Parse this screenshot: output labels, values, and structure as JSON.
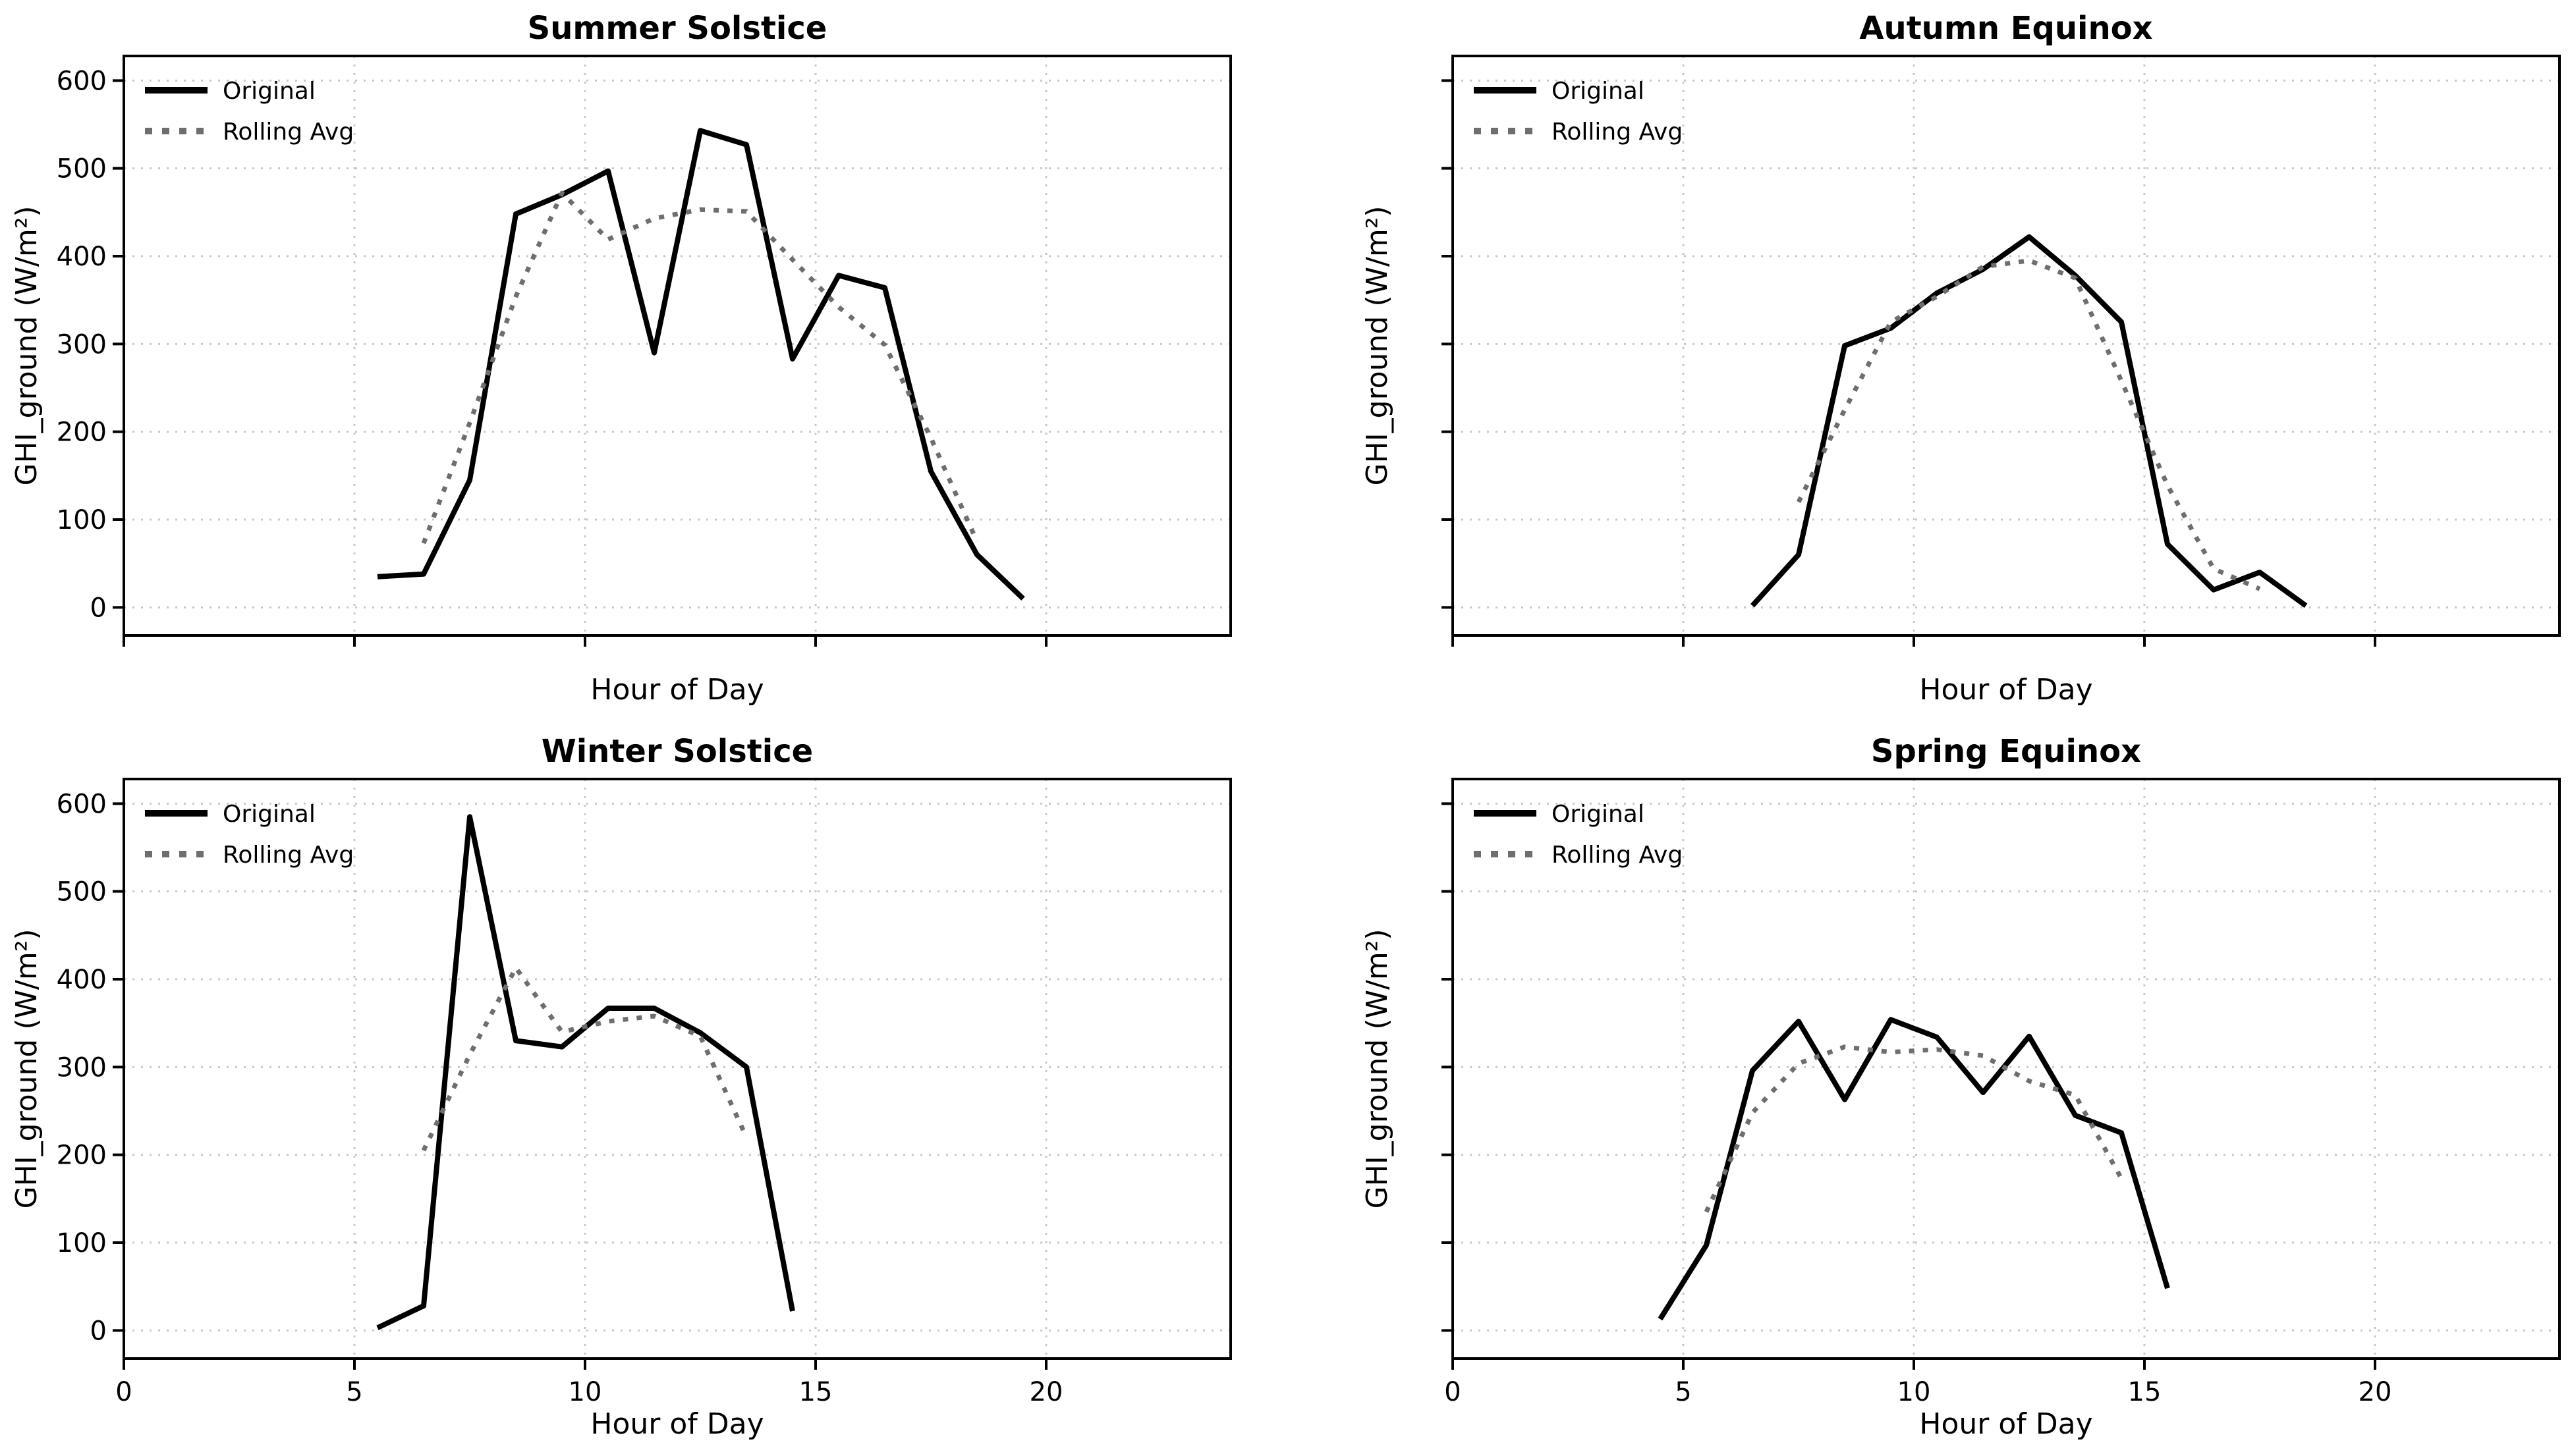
{
  "figure": {
    "background_color": "#ffffff",
    "axis_color": "#000000",
    "grid_color": "#c8c8c8",
    "original_color": "#000000",
    "rolling_color": "#6e6e6e"
  },
  "axes": {
    "xlabel": "Hour of Day",
    "ylabel": "GHI_ground (W/m²)",
    "x_ticks": [
      0,
      5,
      10,
      15,
      20
    ],
    "y_ticks": [
      0,
      100,
      200,
      300,
      400,
      500,
      600
    ],
    "xlim": [
      0,
      24
    ],
    "ylim": [
      -32,
      628
    ],
    "grid": true,
    "legend_position": "upper left"
  },
  "legend": {
    "original_label": "Original",
    "rolling_label": "Rolling Avg"
  },
  "chart_data": [
    {
      "type": "line",
      "title": "Summer Solstice",
      "xlabel": "Hour of Day",
      "ylabel": "GHI_ground (W/m²)",
      "xlim": [
        0,
        24
      ],
      "ylim": [
        -32,
        628
      ],
      "x_ticks": [
        0,
        5,
        10,
        15,
        20
      ],
      "y_ticks": [
        0,
        100,
        200,
        300,
        400,
        500,
        600
      ],
      "series": [
        {
          "name": "Original",
          "style": "solid",
          "color": "#000000",
          "x": [
            5.5,
            6.5,
            7.5,
            8.5,
            9.5,
            10.5,
            11.5,
            12.5,
            13.5,
            14.5,
            15.5,
            16.5,
            17.5,
            18.5,
            19.5
          ],
          "y": [
            35,
            38,
            145,
            448,
            470,
            497,
            290,
            543,
            527,
            283,
            378,
            364,
            155,
            60,
            10
          ]
        },
        {
          "name": "Rolling Avg",
          "style": "dotted",
          "color": "#6e6e6e",
          "x": [
            6.5,
            7.5,
            8.5,
            9.5,
            10.5,
            11.5,
            12.5,
            13.5,
            14.5,
            15.5,
            16.5,
            17.5,
            18.5
          ],
          "y": [
            73,
            210,
            354,
            472,
            419,
            443,
            453,
            451,
            396,
            342,
            299,
            193,
            75
          ]
        }
      ]
    },
    {
      "type": "line",
      "title": "Autumn Equinox",
      "xlabel": "Hour of Day",
      "ylabel": "GHI_ground (W/m²)",
      "xlim": [
        0,
        24
      ],
      "ylim": [
        -32,
        628
      ],
      "x_ticks": [
        0,
        5,
        10,
        15,
        20
      ],
      "y_ticks": [
        0,
        100,
        200,
        300,
        400,
        500,
        600
      ],
      "series": [
        {
          "name": "Original",
          "style": "solid",
          "color": "#000000",
          "x": [
            6.5,
            7.5,
            8.5,
            9.5,
            10.5,
            11.5,
            12.5,
            13.5,
            14.5,
            15.5,
            16.5,
            17.5,
            18.5
          ],
          "y": [
            2,
            60,
            298,
            318,
            358,
            385,
            422,
            378,
            325,
            72,
            20,
            40,
            2
          ]
        },
        {
          "name": "Rolling Avg",
          "style": "dotted",
          "color": "#6e6e6e",
          "x": [
            7.5,
            8.5,
            9.5,
            10.5,
            11.5,
            12.5,
            13.5,
            14.5,
            15.5,
            16.5,
            17.5
          ],
          "y": [
            120,
            225,
            325,
            354,
            388,
            395,
            375,
            258,
            139,
            44,
            21
          ]
        }
      ]
    },
    {
      "type": "line",
      "title": "Winter Solstice",
      "xlabel": "Hour of Day",
      "ylabel": "GHI_ground (W/m²)",
      "xlim": [
        0,
        24
      ],
      "ylim": [
        -32,
        628
      ],
      "x_ticks": [
        0,
        5,
        10,
        15,
        20
      ],
      "y_ticks": [
        0,
        100,
        200,
        300,
        400,
        500,
        600
      ],
      "series": [
        {
          "name": "Original",
          "style": "solid",
          "color": "#000000",
          "x": [
            5.5,
            6.5,
            7.5,
            8.5,
            9.5,
            10.5,
            11.5,
            12.5,
            13.5,
            14.5
          ],
          "y": [
            3,
            28,
            585,
            330,
            323,
            367,
            367,
            339,
            300,
            22
          ]
        },
        {
          "name": "Rolling Avg",
          "style": "dotted",
          "color": "#6e6e6e",
          "x": [
            6.5,
            7.5,
            8.5,
            9.5,
            10.5,
            11.5,
            12.5,
            13.5
          ],
          "y": [
            205,
            314,
            413,
            340,
            352,
            358,
            335,
            220
          ]
        }
      ]
    },
    {
      "type": "line",
      "title": "Spring Equinox",
      "xlabel": "Hour of Day",
      "ylabel": "GHI_ground (W/m²)",
      "xlim": [
        0,
        24
      ],
      "ylim": [
        -32,
        628
      ],
      "x_ticks": [
        0,
        5,
        10,
        15,
        20
      ],
      "y_ticks": [
        0,
        100,
        200,
        300,
        400,
        500,
        600
      ],
      "series": [
        {
          "name": "Original",
          "style": "solid",
          "color": "#000000",
          "x": [
            4.5,
            5.5,
            6.5,
            7.5,
            8.5,
            9.5,
            10.5,
            11.5,
            12.5,
            13.5,
            14.5,
            15.5
          ],
          "y": [
            13,
            97,
            296,
            352,
            263,
            354,
            334,
            271,
            335,
            245,
            225,
            48
          ]
        },
        {
          "name": "Rolling Avg",
          "style": "dotted",
          "color": "#6e6e6e",
          "x": [
            5.5,
            6.5,
            7.5,
            8.5,
            9.5,
            10.5,
            11.5,
            12.5,
            13.5,
            14.5
          ],
          "y": [
            135,
            248,
            304,
            323,
            317,
            320,
            313,
            284,
            268,
            173
          ]
        }
      ]
    }
  ]
}
